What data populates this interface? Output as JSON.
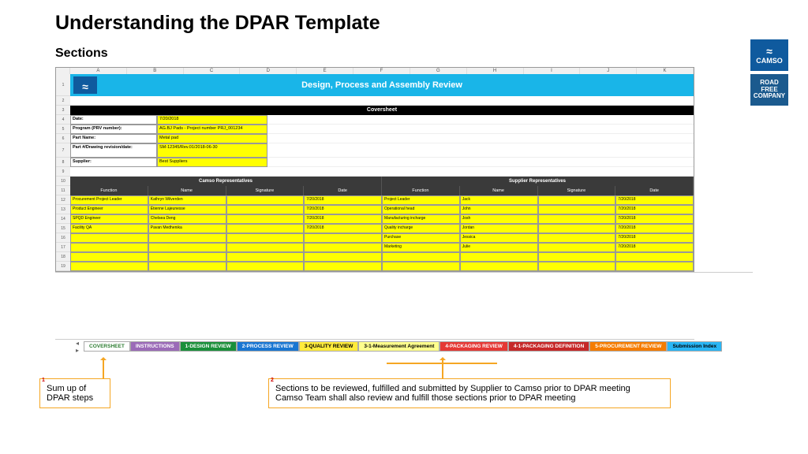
{
  "title": "Understanding the DPAR Template",
  "subtitle": "Sections",
  "brand": {
    "name": "CAMSO",
    "tagline1": "ROAD",
    "tagline2": "FREE",
    "tagline3": "COMPANY"
  },
  "banner": "Design, Process and Assembly Review",
  "coversheet_label": "Coversheet",
  "col_letters": [
    "A",
    "B",
    "C",
    "D",
    "E",
    "F",
    "G",
    "H",
    "I",
    "J",
    "K"
  ],
  "info": [
    {
      "label": "Date:",
      "value": "7/20/2018"
    },
    {
      "label": "Program (PRV number):",
      "value": "AG.BJ Pads - Project number PRJ_001234"
    },
    {
      "label": "Part Name:",
      "value": "Metal pad"
    },
    {
      "label": "Part #/Drawing revision/date:",
      "value": "SM-12345/Rev.01/2018-06-30"
    },
    {
      "label": "Supplier:",
      "value": "Best Suppliers"
    }
  ],
  "reps_left_title": "Camso Representatives",
  "reps_right_title": "Supplier Representatives",
  "reps_cols": [
    "Function",
    "Name",
    "Signature",
    "Date",
    "Function",
    "Name",
    "Signature",
    "Date"
  ],
  "rows": [
    [
      "Procurement Project Leader",
      "Kathryn Wilverden",
      "",
      "7/20/2018",
      "Project Leader",
      "Jack",
      "",
      "7/20/2018"
    ],
    [
      "Product Engineer",
      "Étienne Lajeunesse",
      "",
      "7/20/2018",
      "Operational head",
      "John",
      "",
      "7/20/2018"
    ],
    [
      "SPQD Engineer",
      "Chelsea Deng",
      "",
      "7/20/2018",
      "Manufacturing incharge",
      "Josh",
      "",
      "7/20/2018"
    ],
    [
      "Facility QA",
      "Pavan Medhenika",
      "",
      "7/20/2018",
      "Quality incharge",
      "Jordan",
      "",
      "7/20/2018"
    ],
    [
      "",
      "",
      "",
      "",
      "Purchase",
      "Jessica",
      "",
      "7/20/2018"
    ],
    [
      "",
      "",
      "",
      "",
      "Marketing",
      "Julie",
      "",
      "7/20/2018"
    ],
    [
      "",
      "",
      "",
      "",
      "",
      "",
      "",
      ""
    ],
    [
      "",
      "",
      "",
      "",
      "",
      "",
      "",
      ""
    ]
  ],
  "tabs": [
    {
      "label": "COVERSHEET",
      "bg": "#ffffff",
      "color": "#2e7d32"
    },
    {
      "label": "INSTRUCTIONS",
      "bg": "#9b6bb8",
      "color": "#ffffff"
    },
    {
      "label": "1-DESIGN REVIEW",
      "bg": "#1a8f3a",
      "color": "#ffffff"
    },
    {
      "label": "2-PROCESS REVIEW",
      "bg": "#1976d2",
      "color": "#ffffff"
    },
    {
      "label": "3-QUALITY REVIEW",
      "bg": "#ffeb3b",
      "color": "#000000"
    },
    {
      "label": "3-1-Measurement Agreement",
      "bg": "#ffff8d",
      "color": "#000000"
    },
    {
      "label": "4-PACKAGING REVIEW",
      "bg": "#e53935",
      "color": "#ffffff"
    },
    {
      "label": "4-1-PACKAGING DEFINITION",
      "bg": "#c62828",
      "color": "#ffffff"
    },
    {
      "label": "5-PROCUREMENT REVIEW",
      "bg": "#f57c00",
      "color": "#ffffff"
    },
    {
      "label": "Submission Index",
      "bg": "#29b6f6",
      "color": "#000000"
    }
  ],
  "callout1": {
    "num": "1",
    "text": "Sum up of DPAR steps"
  },
  "callout2": {
    "num": "2",
    "line1": "Sections to be reviewed, fulfilled and submitted by Supplier to Camso prior to DPAR meeting",
    "line2": "Camso Team shall also review and fulfill those sections prior to DPAR meeting"
  },
  "colors": {
    "highlight": "#ffff00",
    "banner": "#19b5e8",
    "callout_border": "#f5a623"
  }
}
